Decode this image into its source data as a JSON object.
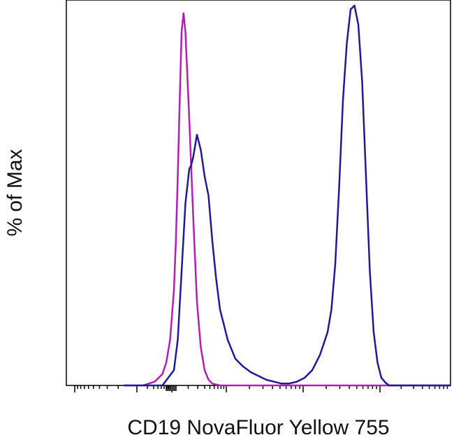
{
  "chart_data": {
    "type": "line",
    "title": "",
    "xlabel": "CD19 NovaFluor Yellow 755",
    "ylabel": "% of Max",
    "xscale": "biexponential",
    "x_tick_labels": "none",
    "y_tick_labels": "none",
    "grid": false,
    "legend": "none",
    "xlim": [
      0,
      1
    ],
    "ylim": [
      0,
      100
    ],
    "series": [
      {
        "color": "#b21eb4",
        "x": [
          0.15,
          0.2,
          0.23,
          0.25,
          0.26,
          0.27,
          0.28,
          0.285,
          0.29,
          0.295,
          0.3,
          0.305,
          0.31,
          0.32,
          0.33,
          0.34,
          0.35,
          0.36,
          0.37,
          0.38,
          0.4,
          0.45,
          1.0
        ],
        "y": [
          0,
          0,
          1,
          3,
          6,
          12,
          25,
          38,
          55,
          75,
          93,
          98,
          93,
          70,
          45,
          22,
          10,
          4,
          1.5,
          0.5,
          0,
          0,
          0
        ]
      },
      {
        "color": "#1f1a94",
        "x": [
          0.15,
          0.25,
          0.28,
          0.29,
          0.3,
          0.31,
          0.32,
          0.325,
          0.33,
          0.34,
          0.35,
          0.36,
          0.37,
          0.38,
          0.39,
          0.4,
          0.42,
          0.44,
          0.46,
          0.48,
          0.5,
          0.52,
          0.54,
          0.56,
          0.58,
          0.6,
          0.62,
          0.64,
          0.66,
          0.68,
          0.69,
          0.7,
          0.71,
          0.72,
          0.73,
          0.74,
          0.75,
          0.76,
          0.77,
          0.78,
          0.79,
          0.8,
          0.81,
          0.82,
          0.83,
          0.84,
          0.86,
          0.88,
          1.0
        ],
        "y": [
          0,
          0,
          4,
          12,
          30,
          48,
          57,
          58,
          60,
          66,
          62,
          55,
          50,
          38,
          28,
          20,
          12,
          7,
          5,
          3.5,
          2.5,
          1.5,
          1,
          0.5,
          0.5,
          1,
          2,
          4,
          8,
          14,
          20,
          32,
          52,
          75,
          90,
          99,
          100,
          95,
          80,
          55,
          30,
          14,
          6,
          2,
          0.8,
          0,
          0,
          0,
          0
        ]
      }
    ]
  }
}
